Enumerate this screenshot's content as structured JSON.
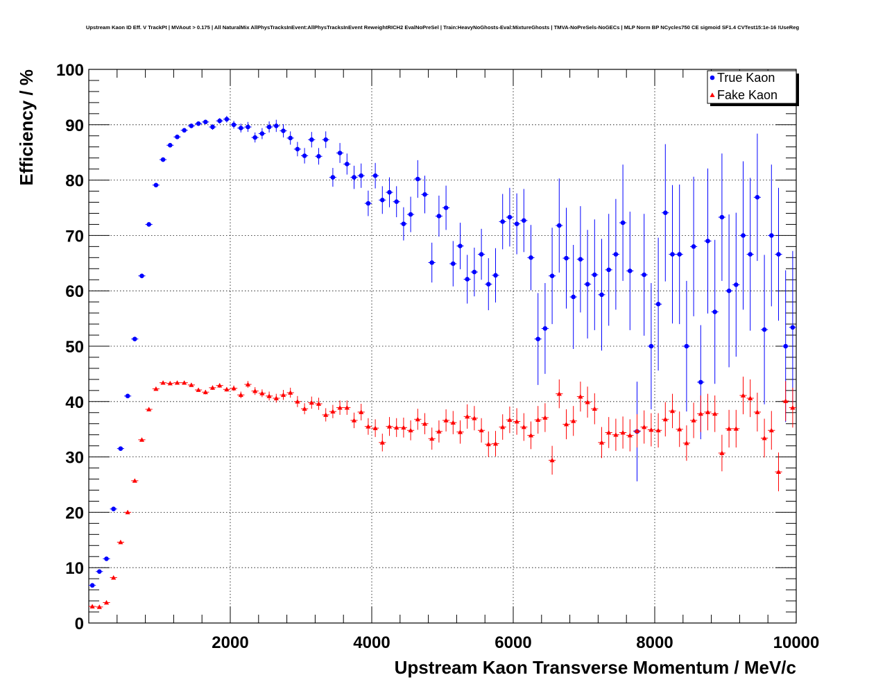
{
  "chart_data": {
    "type": "scatter",
    "title": "Upstream Kaon ID Eff. V TrackPt | MVAout > 0.175 | All NaturalMix AllPhysTracksInEvent:AllPhysTracksInEvent ReweightRICH2 EvalNoPreSel | Train:HeavyNoGhosts-Eval:MixtureGhosts | TMVA-NoPreSels-NoGECs | MLP Norm BP NCycles750 CE sigmoid SF1.4 CVTest15:1e-16 !UseReg",
    "xlabel": "Upstream Kaon Transverse Momentum / MeV/c",
    "ylabel": "Efficiency / %",
    "xlim": [
      0,
      10000
    ],
    "ylim": [
      0,
      100
    ],
    "xticks": [
      2000,
      4000,
      6000,
      8000,
      10000
    ],
    "yticks": [
      0,
      10,
      20,
      30,
      40,
      50,
      60,
      70,
      80,
      90,
      100
    ],
    "grid": true,
    "legend_position": "top-right",
    "bin_width": 100,
    "x": [
      50,
      150,
      250,
      350,
      450,
      550,
      650,
      750,
      850,
      950,
      1050,
      1150,
      1250,
      1350,
      1450,
      1550,
      1650,
      1750,
      1850,
      1950,
      2050,
      2150,
      2250,
      2350,
      2450,
      2550,
      2650,
      2750,
      2850,
      2950,
      3050,
      3150,
      3250,
      3350,
      3450,
      3550,
      3650,
      3750,
      3850,
      3950,
      4050,
      4150,
      4250,
      4350,
      4450,
      4550,
      4650,
      4750,
      4850,
      4950,
      5050,
      5150,
      5250,
      5350,
      5450,
      5550,
      5650,
      5750,
      5850,
      5950,
      6050,
      6150,
      6250,
      6350,
      6450,
      6550,
      6650,
      6750,
      6850,
      6950,
      7050,
      7150,
      7250,
      7350,
      7450,
      7550,
      7650,
      7750,
      7850,
      7950,
      8050,
      8150,
      8250,
      8350,
      8450,
      8550,
      8650,
      8750,
      8850,
      8950,
      9050,
      9150,
      9250,
      9350,
      9450,
      9550,
      9650,
      9750,
      9850,
      9950
    ],
    "series": [
      {
        "name": "True Kaon",
        "color": "#0000ff",
        "marker": "circle",
        "values": [
          6.8,
          9.3,
          11.6,
          20.6,
          31.5,
          41.0,
          51.3,
          62.7,
          72.0,
          79.1,
          83.7,
          86.3,
          87.8,
          89.0,
          89.8,
          90.2,
          90.5,
          89.6,
          90.7,
          91.0,
          90.0,
          89.4,
          89.6,
          87.7,
          88.4,
          89.6,
          89.8,
          88.9,
          87.6,
          85.6,
          84.4,
          87.3,
          84.3,
          87.3,
          80.5,
          84.9,
          82.9,
          80.5,
          80.8,
          75.8,
          80.8,
          76.4,
          77.8,
          76.1,
          72.1,
          73.8,
          80.2,
          77.4,
          65.1,
          73.5,
          75.0,
          64.9,
          68.1,
          62.1,
          63.4,
          66.6,
          61.2,
          62.8,
          72.5,
          73.3,
          72.1,
          72.7,
          66.0,
          51.3,
          53.2,
          62.7,
          71.8,
          65.9,
          58.9,
          65.7,
          61.2,
          62.9,
          59.3,
          63.8,
          66.6,
          72.3,
          63.6,
          34.6,
          62.9,
          50.0,
          57.6,
          74.1,
          66.6,
          66.6,
          50.0,
          68.0,
          43.5,
          69.0,
          56.2,
          73.3,
          60.0,
          61.1,
          70.0,
          66.6,
          76.9,
          53.0,
          70.0,
          66.6,
          50.0,
          53.4
        ],
        "errors": [
          0.3,
          0.3,
          0.3,
          0.4,
          0.4,
          0.4,
          0.4,
          0.4,
          0.4,
          0.4,
          0.4,
          0.4,
          0.4,
          0.4,
          0.4,
          0.4,
          0.4,
          0.5,
          0.5,
          0.6,
          0.7,
          0.8,
          0.9,
          0.9,
          1.0,
          1.0,
          1.1,
          1.2,
          1.2,
          1.3,
          1.4,
          1.4,
          1.5,
          1.5,
          1.7,
          1.8,
          1.9,
          2.1,
          2.2,
          2.3,
          2.3,
          2.5,
          2.7,
          2.8,
          3.0,
          3.2,
          3.4,
          3.4,
          3.6,
          3.7,
          4.0,
          4.1,
          4.2,
          4.4,
          4.4,
          4.6,
          4.7,
          4.9,
          5.0,
          5.3,
          5.5,
          5.7,
          5.9,
          8.3,
          8.2,
          8.7,
          8.5,
          9.1,
          9.4,
          9.6,
          9.8,
          10.0,
          10.1,
          10.1,
          10.0,
          10.5,
          10.7,
          9.0,
          11.0,
          11.4,
          12.0,
          12.4,
          12.5,
          12.6,
          11.8,
          12.6,
          10.3,
          13.1,
          13.0,
          11.5,
          13.8,
          13.0,
          13.4,
          13.8,
          11.5,
          13.5,
          12.8,
          12.0,
          13.7,
          13.8
        ]
      },
      {
        "name": "Fake Kaon",
        "color": "#ff0000",
        "marker": "triangle",
        "values": [
          3.0,
          2.9,
          3.7,
          8.2,
          14.6,
          20.0,
          25.7,
          33.1,
          38.6,
          42.3,
          43.4,
          43.3,
          43.4,
          43.4,
          43.0,
          42.1,
          41.7,
          42.5,
          42.9,
          42.2,
          42.4,
          41.2,
          43.1,
          41.9,
          41.5,
          41.0,
          40.6,
          41.2,
          41.6,
          40.0,
          38.7,
          39.8,
          39.6,
          37.6,
          38.2,
          38.9,
          38.9,
          36.6,
          38.1,
          35.5,
          35.2,
          32.6,
          35.5,
          35.3,
          35.3,
          34.8,
          36.8,
          36.0,
          33.3,
          34.6,
          36.6,
          36.2,
          34.5,
          37.3,
          37.0,
          34.8,
          32.3,
          32.4,
          35.4,
          36.7,
          36.4,
          35.4,
          33.9,
          36.7,
          37.1,
          29.4,
          41.4,
          35.9,
          36.5,
          40.9,
          39.9,
          38.7,
          32.6,
          34.4,
          34.0,
          34.4,
          33.9,
          34.7,
          35.4,
          34.9,
          34.8,
          36.8,
          38.3,
          35.0,
          32.5,
          36.6,
          37.8,
          38.1,
          37.8,
          30.7,
          35.1,
          35.1,
          41.1,
          40.6,
          38.1,
          33.4,
          34.8,
          27.3,
          40.1,
          38.9
        ],
        "errors": [
          0.3,
          0.3,
          0.3,
          0.3,
          0.3,
          0.3,
          0.3,
          0.3,
          0.3,
          0.3,
          0.3,
          0.3,
          0.3,
          0.3,
          0.3,
          0.3,
          0.4,
          0.4,
          0.4,
          0.4,
          0.5,
          0.6,
          0.6,
          0.7,
          0.7,
          0.8,
          0.8,
          0.9,
          0.9,
          1.0,
          1.0,
          1.1,
          1.1,
          1.2,
          1.2,
          1.3,
          1.3,
          1.4,
          1.5,
          1.5,
          1.6,
          1.6,
          1.7,
          1.7,
          1.8,
          1.8,
          1.9,
          1.9,
          2.0,
          2.0,
          2.0,
          2.1,
          2.1,
          2.2,
          2.2,
          2.2,
          2.3,
          2.3,
          2.3,
          2.4,
          2.4,
          2.5,
          2.5,
          2.5,
          2.6,
          2.6,
          2.6,
          2.7,
          2.7,
          2.7,
          2.8,
          2.8,
          2.8,
          2.8,
          2.9,
          2.9,
          2.9,
          3.0,
          3.0,
          3.0,
          3.1,
          3.1,
          3.1,
          3.2,
          3.2,
          3.2,
          3.3,
          3.3,
          3.3,
          3.3,
          3.4,
          3.4,
          3.4,
          3.4,
          3.5,
          3.5,
          3.5,
          3.5,
          3.6,
          3.6
        ]
      }
    ]
  }
}
